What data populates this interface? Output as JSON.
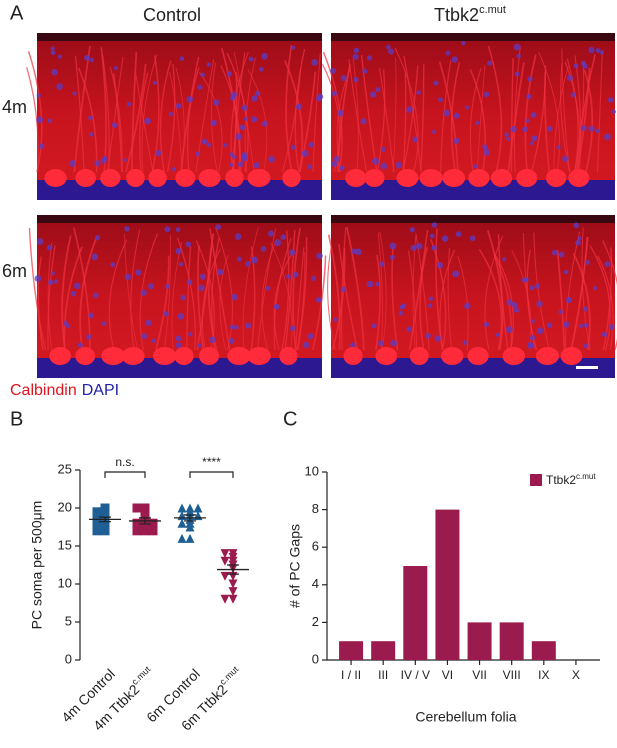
{
  "figure": {
    "panel_a": {
      "panel_label": "A",
      "columns": [
        {
          "text": "Control"
        },
        {
          "text": "Ttbk2",
          "superscript": "c.mut"
        }
      ],
      "rows": [
        "4m",
        "6m"
      ],
      "stain_red": "Calbindin",
      "stain_blue": "DAPI"
    }
  },
  "chart_data": [
    {
      "type": "dotplot",
      "panel_label": "B",
      "ylabel": "PC soma per 500μm",
      "categories": [
        "4m Control",
        "4m Ttbk2",
        "6m Control",
        "6m Ttbk2"
      ],
      "category_superscripts": [
        null,
        "c.mut",
        null,
        "c.mut"
      ],
      "colors": [
        "#1f5f94",
        "#9b1b4f",
        "#1f5f94",
        "#9b1b4f"
      ],
      "markers": [
        "square",
        "square",
        "triangle",
        "triangle-down"
      ],
      "points": [
        [
          20,
          19.5,
          19.5,
          19,
          19,
          18.5,
          18.5,
          18,
          18,
          17.5,
          17,
          17
        ],
        [
          20,
          20,
          19.5,
          19,
          18.5,
          18,
          18,
          18,
          17.5,
          17,
          17,
          17
        ],
        [
          20,
          20,
          20,
          19.5,
          19,
          19,
          19,
          18.5,
          18,
          18,
          17.5,
          16,
          16
        ],
        [
          14,
          14,
          13.5,
          13,
          13,
          12.5,
          12,
          11,
          11,
          10,
          9,
          8,
          8
        ]
      ],
      "means": [
        18.5,
        18.3,
        18.7,
        11.9
      ],
      "sems": [
        0.3,
        0.4,
        0.4,
        0.6
      ],
      "annotations": [
        "n.s.",
        "****"
      ],
      "ylim": [
        0,
        25
      ],
      "yticks": [
        0,
        5,
        10,
        15,
        20,
        25
      ]
    },
    {
      "type": "bar",
      "panel_label": "C",
      "ylabel": "# of PC Gaps",
      "xlabel": "Cerebellum folia",
      "categories": [
        "I / II",
        "III",
        "IV / V",
        "VI",
        "VII",
        "VIII",
        "IX",
        "X"
      ],
      "series": [
        {
          "name": "Ttbk2",
          "name_superscript": "c.mut",
          "color": "#9b1b4f",
          "values": [
            1,
            1,
            5,
            8,
            2,
            2,
            1,
            0
          ]
        }
      ],
      "legend": "top-right",
      "ylim": [
        0,
        10
      ],
      "yticks": [
        0,
        2,
        4,
        6,
        8,
        10
      ]
    }
  ]
}
